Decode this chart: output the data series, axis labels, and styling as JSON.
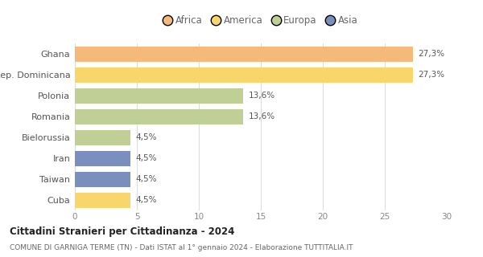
{
  "categories": [
    "Ghana",
    "Rep. Dominicana",
    "Polonia",
    "Romania",
    "Bielorussia",
    "Iran",
    "Taiwan",
    "Cuba"
  ],
  "values": [
    27.3,
    27.3,
    13.6,
    13.6,
    4.5,
    4.5,
    4.5,
    4.5
  ],
  "bar_colors": [
    "#F5B97A",
    "#F9D66B",
    "#BFCF96",
    "#BFCF96",
    "#BFCF96",
    "#7B8FBF",
    "#7B8FBF",
    "#F9D66B"
  ],
  "labels": [
    "27,3%",
    "27,3%",
    "13,6%",
    "13,6%",
    "4,5%",
    "4,5%",
    "4,5%",
    "4,5%"
  ],
  "continents": [
    "Africa",
    "America",
    "Europa",
    "Asia"
  ],
  "legend_colors": [
    "#F5B97A",
    "#F9D66B",
    "#BFCF96",
    "#7B8FBF"
  ],
  "xlim": [
    0,
    30
  ],
  "xticks": [
    0,
    5,
    10,
    15,
    20,
    25,
    30
  ],
  "title": "Cittadini Stranieri per Cittadinanza - 2024",
  "subtitle": "COMUNE DI GARNIGA TERME (TN) - Dati ISTAT al 1° gennaio 2024 - Elaborazione TUTTITALIA.IT",
  "background_color": "#ffffff",
  "bar_height": 0.72
}
